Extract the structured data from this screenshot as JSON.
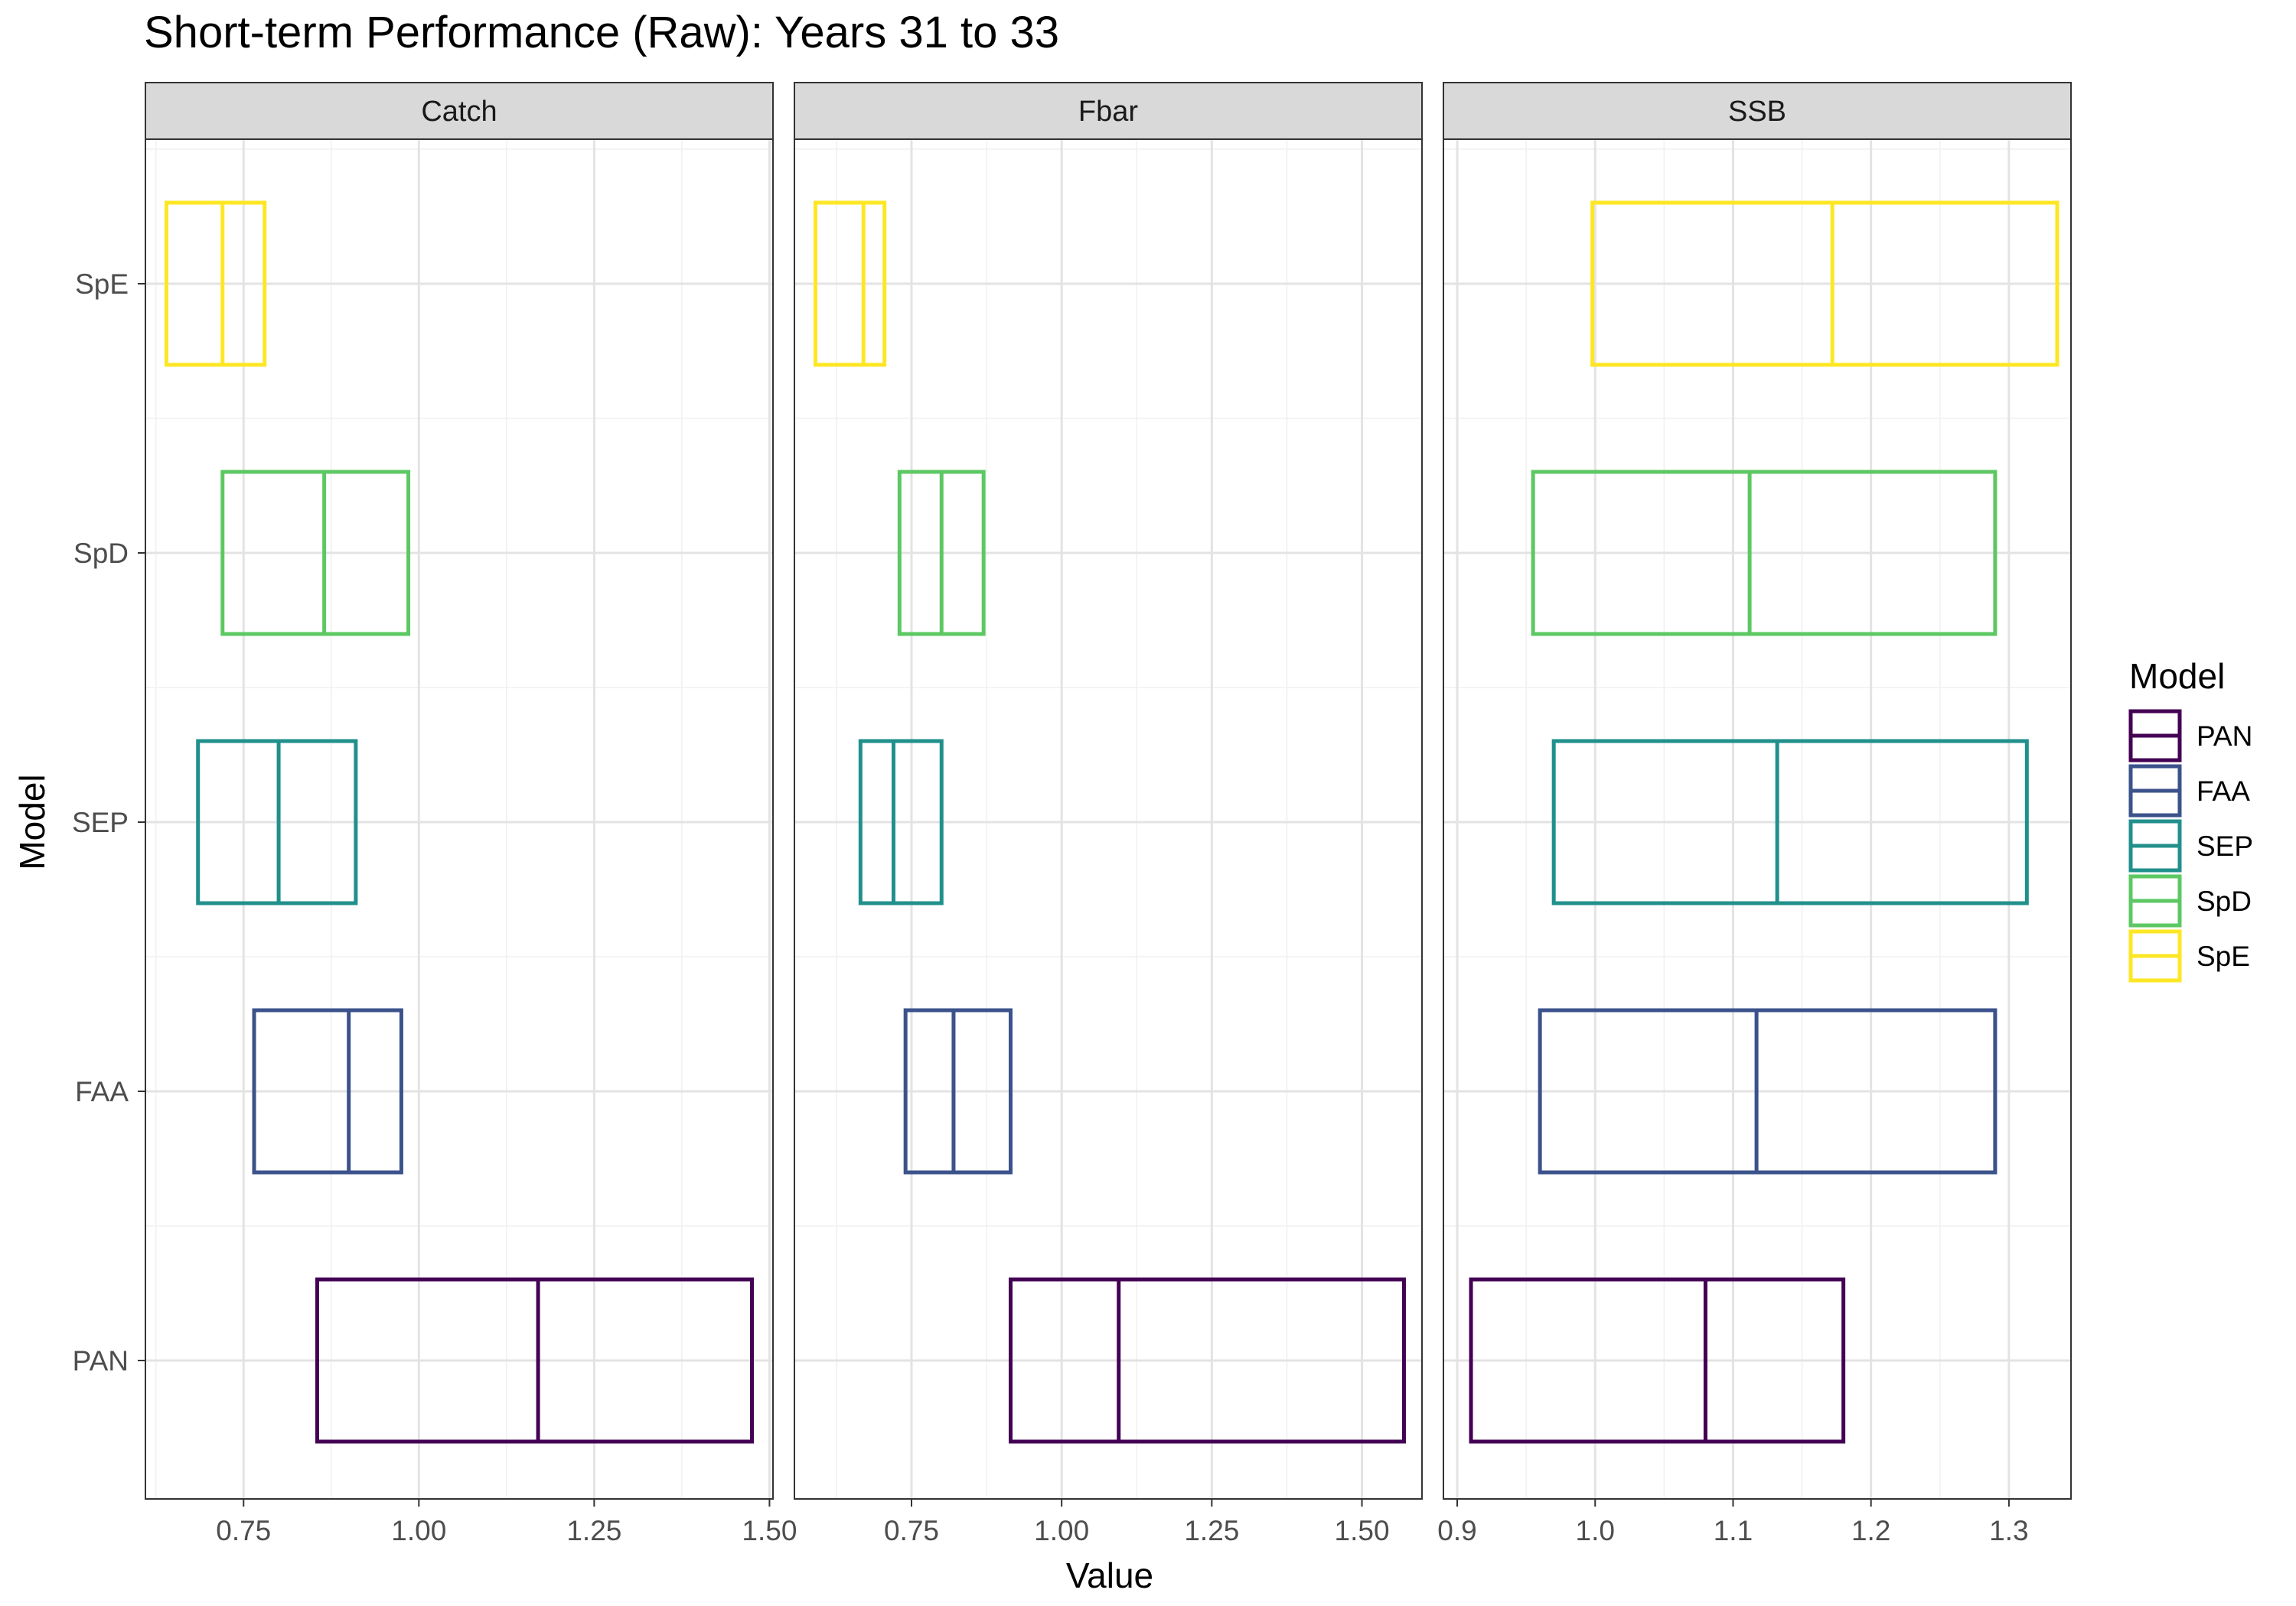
{
  "chart_data": {
    "type": "boxplot",
    "title": "Short-term Performance (Raw): Years 31 to 33",
    "xlabel": "Value",
    "ylabel": "Model",
    "categories": [
      "PAN",
      "FAA",
      "SEP",
      "SpD",
      "SpE"
    ],
    "colors": {
      "PAN": "#440154",
      "FAA": "#3B528B",
      "SEP": "#21908C",
      "SpD": "#5DC863",
      "SpE": "#FDE725"
    },
    "grid": true,
    "legend_position": "right",
    "legend_title": "Model",
    "panels": [
      {
        "strip": "Catch",
        "xlim": [
          0.61,
          1.505
        ],
        "xticks": [
          0.75,
          1.0,
          1.25,
          1.5
        ],
        "xtick_labels": [
          "0.75",
          "1.00",
          "1.25",
          "1.50"
        ],
        "boxes": [
          {
            "model": "PAN",
            "q1": 0.855,
            "median": 1.17,
            "q3": 1.475
          },
          {
            "model": "FAA",
            "q1": 0.765,
            "median": 0.9,
            "q3": 0.975
          },
          {
            "model": "SEP",
            "q1": 0.685,
            "median": 0.8,
            "q3": 0.91
          },
          {
            "model": "SpD",
            "q1": 0.72,
            "median": 0.865,
            "q3": 0.985
          },
          {
            "model": "SpE",
            "q1": 0.64,
            "median": 0.72,
            "q3": 0.78
          }
        ]
      },
      {
        "strip": "Fbar",
        "xlim": [
          0.555,
          1.6
        ],
        "xticks": [
          0.75,
          1.0,
          1.25,
          1.5
        ],
        "xtick_labels": [
          "0.75",
          "1.00",
          "1.25",
          "1.50"
        ],
        "boxes": [
          {
            "model": "PAN",
            "q1": 0.915,
            "median": 1.095,
            "q3": 1.57
          },
          {
            "model": "FAA",
            "q1": 0.74,
            "median": 0.82,
            "q3": 0.915
          },
          {
            "model": "SEP",
            "q1": 0.665,
            "median": 0.72,
            "q3": 0.8
          },
          {
            "model": "SpD",
            "q1": 0.73,
            "median": 0.8,
            "q3": 0.87
          },
          {
            "model": "SpE",
            "q1": 0.59,
            "median": 0.67,
            "q3": 0.705
          }
        ]
      },
      {
        "strip": "SSB",
        "xlim": [
          0.89,
          1.345
        ],
        "xticks": [
          0.9,
          1.0,
          1.1,
          1.2,
          1.3
        ],
        "xtick_labels": [
          "0.9",
          "1.0",
          "1.1",
          "1.2",
          "1.3"
        ],
        "boxes": [
          {
            "model": "PAN",
            "q1": 0.91,
            "median": 1.08,
            "q3": 1.18
          },
          {
            "model": "FAA",
            "q1": 0.96,
            "median": 1.117,
            "q3": 1.29
          },
          {
            "model": "SEP",
            "q1": 0.97,
            "median": 1.132,
            "q3": 1.313
          },
          {
            "model": "SpD",
            "q1": 0.955,
            "median": 1.112,
            "q3": 1.29
          },
          {
            "model": "SpE",
            "q1": 0.998,
            "median": 1.172,
            "q3": 1.335
          }
        ]
      }
    ]
  }
}
